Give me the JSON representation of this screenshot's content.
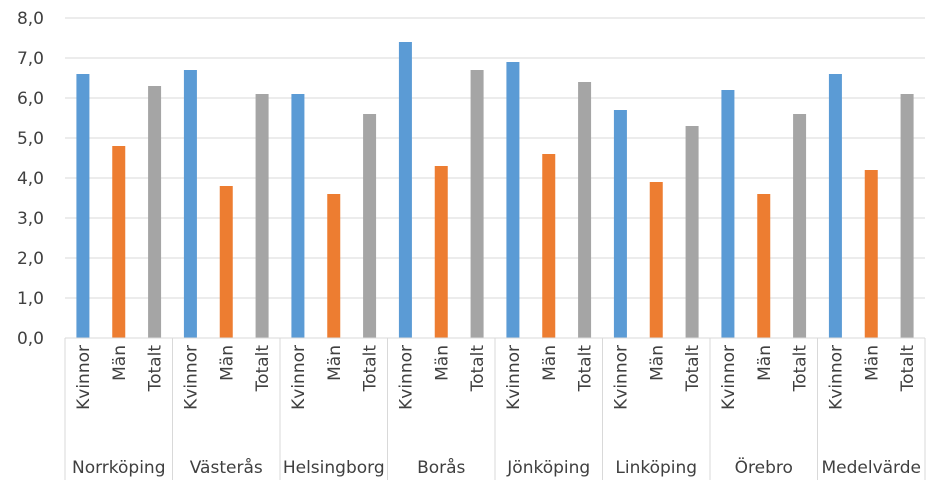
{
  "chart_data": {
    "type": "bar",
    "title": "",
    "xlabel": "",
    "ylabel": "",
    "ylim": [
      0,
      8
    ],
    "yticks": [
      "0,0",
      "1,0",
      "2,0",
      "3,0",
      "4,0",
      "5,0",
      "6,0",
      "7,0",
      "8,0"
    ],
    "grid": true,
    "legend": "none",
    "subcategories": [
      "Kvinnor",
      "Män",
      "Totalt"
    ],
    "colors": [
      "#5b9bd5",
      "#ed7d31",
      "#a5a5a5"
    ],
    "groups": [
      {
        "name": "Norrköping",
        "values": [
          6.6,
          4.8,
          6.3
        ]
      },
      {
        "name": "Västerås",
        "values": [
          6.7,
          3.8,
          6.1
        ]
      },
      {
        "name": "Helsingborg",
        "values": [
          6.1,
          3.6,
          5.6
        ]
      },
      {
        "name": "Borås",
        "values": [
          7.4,
          4.3,
          6.7
        ]
      },
      {
        "name": "Jönköping",
        "values": [
          6.9,
          4.6,
          6.4
        ]
      },
      {
        "name": "Linköping",
        "values": [
          5.7,
          3.9,
          5.3
        ]
      },
      {
        "name": "Örebro",
        "values": [
          6.2,
          3.6,
          5.6
        ]
      },
      {
        "name": "Medelvärde",
        "values": [
          6.6,
          4.2,
          6.1
        ]
      }
    ]
  }
}
